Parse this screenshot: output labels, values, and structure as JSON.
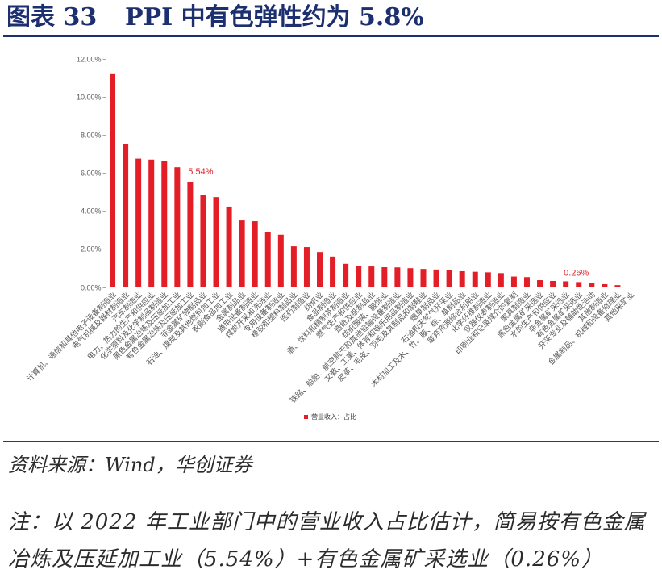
{
  "header": {
    "figure_label": "图表 33",
    "title": "PPI 中有色弹性约为 5.8%"
  },
  "chart_data": {
    "type": "bar",
    "categories": [
      "计算机、通信和其他电子设备制造业",
      "电气机械及器材制造业",
      "汽车制造业",
      "电力、热力的生产和供应业",
      "化学原料及化学制品制造业",
      "黑色金属冶炼及压延加工业",
      "有色金属冶炼及压延加工业",
      "非金属矿物制品业",
      "石油、煤炭及其他燃料加工业",
      "农副食品加工业",
      "金属制品业",
      "通用设备制造业",
      "煤炭开采和洗选业",
      "专用设备制造业",
      "橡胶和塑料制品业",
      "医药制造业",
      "纺织业",
      "食品制造业",
      "酒、饮料和精制茶制造业",
      "燃气生产和供应业",
      "造纸及纸制品业",
      "纺织服装、服饰业",
      "铁路、船舶、航空航天和其他运输设备制造业",
      "文教、工美、体育和娱乐用品制造业",
      "皮革、毛皮、羽毛及其制品和制鞋业",
      "烟草制品业",
      "石油和天然气开采业",
      "木材加工及木、竹、藤、棕、草制品业",
      "废弃资源综合利用业",
      "化学纤维制造业",
      "仪器仪表制造业",
      "印刷业和记录媒介的复制",
      "家具制造业",
      "黑色金属矿采选业",
      "水的生产和供应业",
      "非金属矿采选业",
      "有色金属矿采选业",
      "开采专业及辅助性活动",
      "其他制造业",
      "金属制品、机械和设备修理业",
      "其他采矿业"
    ],
    "series": [
      {
        "name": "营业收入：占比",
        "color": "#e31e26",
        "values": [
          11.2,
          7.5,
          6.75,
          6.7,
          6.62,
          6.3,
          5.54,
          4.82,
          4.73,
          4.23,
          3.5,
          3.46,
          2.91,
          2.75,
          2.14,
          2.1,
          1.84,
          1.6,
          1.22,
          1.12,
          1.08,
          1.04,
          1.03,
          0.99,
          0.95,
          0.92,
          0.88,
          0.83,
          0.8,
          0.77,
          0.73,
          0.55,
          0.52,
          0.36,
          0.32,
          0.3,
          0.26,
          0.21,
          0.15,
          0.1,
          0.02
        ]
      }
    ],
    "y_unit": "%",
    "ylim": [
      0,
      12
    ],
    "y_ticks": [
      0,
      2,
      4,
      6,
      8,
      10,
      12
    ],
    "grid": false,
    "legend_position": "bottom",
    "annotations": [
      {
        "category": "有色金属冶炼及压延加工业",
        "text": "5.54%"
      },
      {
        "category": "有色金属矿采选业",
        "text": "0.26%"
      }
    ]
  },
  "footer": {
    "source": "资料来源：Wind，华创证券",
    "note_line1": "注：以 2022 年工业部门中的营业收入占比估计，简易按有色金属",
    "note_line2": "冶炼及压延加工业（5.54%）+有色金属矿采选业（0.26%）"
  },
  "colors": {
    "title": "#1c2f6e",
    "annotation": "#e31e26",
    "axis": "#a6a6a6"
  }
}
